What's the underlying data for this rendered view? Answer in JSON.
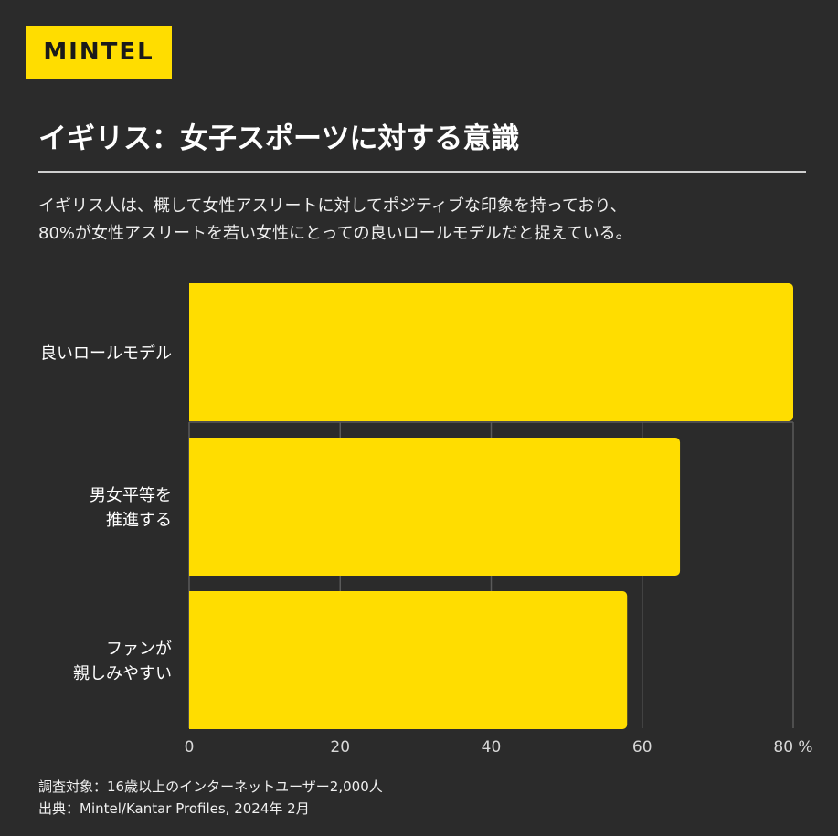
{
  "brand": {
    "logo_text": "MINTEL",
    "accent": "#ffdd00",
    "background": "#2b2b2b"
  },
  "header": {
    "title": "イギリス：女子スポーツに対する意識",
    "description_lines": [
      "イギリス人は、概して女性アスリートに対してポジティブな印象を持っており、",
      "80%が女性アスリートを若い女性にとっての良いロールモデルだと捉えている。"
    ]
  },
  "chart_data": {
    "type": "bar",
    "orientation": "horizontal",
    "categories": [
      [
        "良いロールモデル"
      ],
      [
        "男女平等を",
        "推進する"
      ],
      [
        "ファンが",
        "親しみやすい"
      ]
    ],
    "values": [
      80,
      65,
      58
    ],
    "xticks": [
      "0",
      "20",
      "40",
      "60",
      "80"
    ],
    "xlim": [
      0,
      80
    ],
    "unit": "%",
    "bar_color": "#ffdd00",
    "grid": true
  },
  "footer": {
    "survey": "調査対象：16歳以上のインターネットユーザー2,000人",
    "source": "出典：Mintel/Kantar Profiles, 2024年 2月"
  }
}
